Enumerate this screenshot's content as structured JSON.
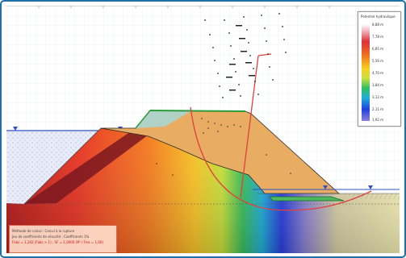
{
  "legend": {
    "title": "Potentiel hydraulique",
    "values": [
      "8,88 m",
      "7,78 m",
      "6,85 m",
      "5,56 m",
      "4,70 m",
      "3,84 m",
      "3,12 m",
      "2,11 m",
      "1,92 m"
    ]
  },
  "info_box": {
    "line1": "Méthode de calcul : Calcul à la rupture",
    "line2": "Jeu de coefficients de sécurité : Coefficients 1%",
    "line3": "Fobs = 1,202 (Fobs > 1) ; SF = 1,0000 (M' / Fres = 1,00)"
  },
  "colors": {
    "frame_border": "#1f6fa8",
    "embankment_fill": "#e8ac62",
    "water_line": "#3050c8",
    "slip_circle": "#e04040"
  }
}
